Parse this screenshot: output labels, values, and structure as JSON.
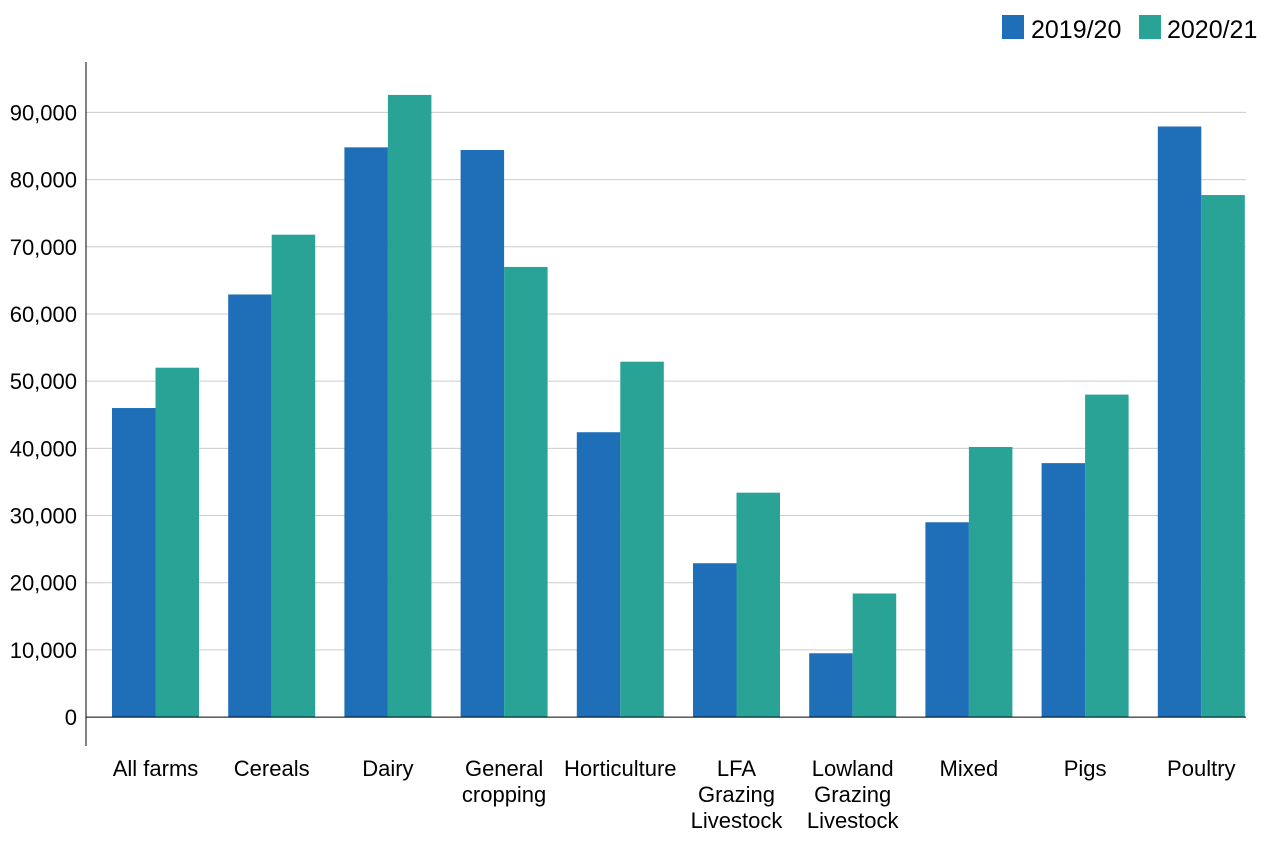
{
  "chart_data": {
    "type": "bar",
    "categories": [
      "All farms",
      "Cereals",
      "Dairy",
      "General cropping",
      "Horticulture",
      "LFA Grazing Livestock",
      "Lowland Grazing Livestock",
      "Mixed",
      "Pigs",
      "Poultry"
    ],
    "series": [
      {
        "name": "2019/20",
        "color": "#1f6eb8",
        "values": [
          46000,
          62900,
          84800,
          84400,
          42400,
          22900,
          9500,
          29000,
          37800,
          87900
        ]
      },
      {
        "name": "2020/21",
        "color": "#29a396",
        "values": [
          52000,
          71800,
          92600,
          67000,
          52900,
          33400,
          18400,
          40200,
          48000,
          77700
        ]
      }
    ],
    "yticks": [
      0,
      10000,
      20000,
      30000,
      40000,
      50000,
      60000,
      70000,
      80000,
      90000
    ],
    "ytick_labels": [
      "0",
      "10,000",
      "20,000",
      "30,000",
      "40,000",
      "50,000",
      "60,000",
      "70,000",
      "80,000",
      "90,000"
    ],
    "ylim": [
      -4300,
      97500
    ],
    "grid": true,
    "legend": "top-right",
    "title": "",
    "xlabel": "",
    "ylabel": ""
  }
}
